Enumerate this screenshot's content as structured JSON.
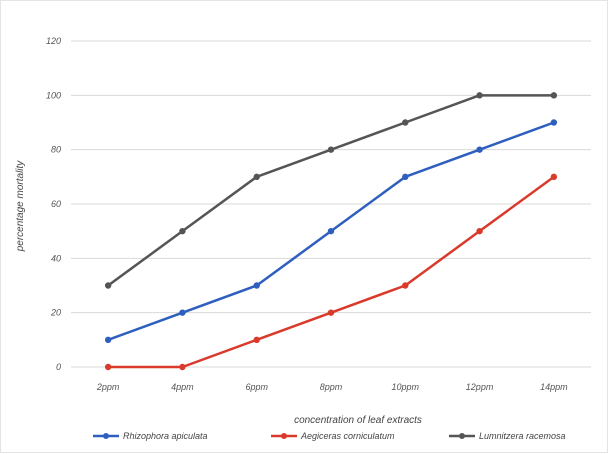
{
  "chart_data": {
    "type": "line",
    "title": "",
    "xlabel": "concentration of leaf extracts",
    "ylabel": "percentage mortality",
    "categories": [
      "2ppm",
      "4ppm",
      "6ppm",
      "8ppm",
      "10ppm",
      "12ppm",
      "14ppm"
    ],
    "y_ticks": [
      0,
      20,
      40,
      60,
      80,
      100,
      120
    ],
    "ylim": [
      0,
      120
    ],
    "grid": true,
    "legend_position": "bottom",
    "series": [
      {
        "name": "Rhizophora apiculata",
        "color": "#2e5fbf",
        "values": [
          10,
          20,
          30,
          50,
          70,
          80,
          90
        ]
      },
      {
        "name": "Aegiceras corniculatum",
        "color": "#d93a2b",
        "values": [
          0,
          0,
          10,
          20,
          30,
          50,
          70
        ]
      },
      {
        "name": "Lumnitzera racemosa",
        "color": "#555555",
        "values": [
          30,
          50,
          70,
          80,
          90,
          100,
          100
        ]
      }
    ]
  }
}
